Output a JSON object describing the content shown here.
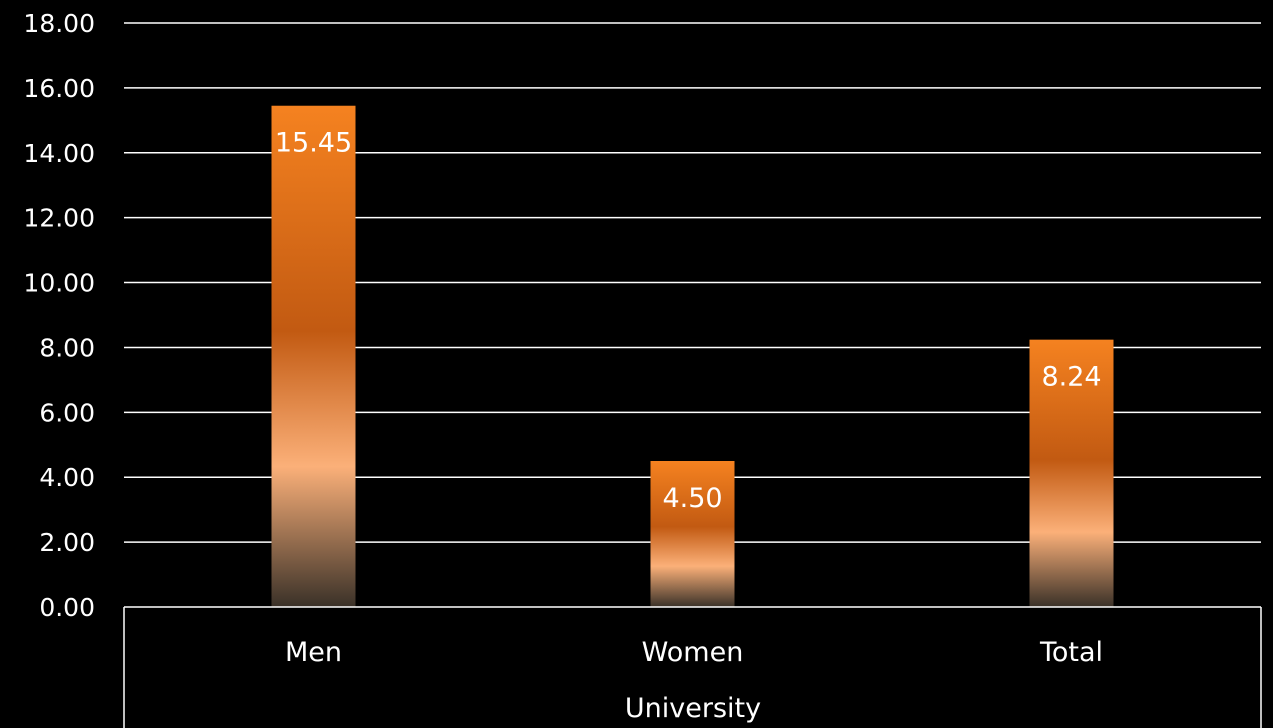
{
  "chart_data": {
    "type": "bar",
    "categories": [
      "Men",
      "Women",
      "Total"
    ],
    "group_label": "University",
    "series": [
      {
        "values": [
          15.45,
          4.5,
          8.24
        ],
        "value_labels": [
          "15.45",
          "4.50",
          "8.24"
        ]
      }
    ],
    "ylim": [
      0,
      18
    ],
    "yticks": [
      "0.00",
      "2.00",
      "4.00",
      "6.00",
      "8.00",
      "10.00",
      "12.00",
      "14.00",
      "16.00",
      "18.00"
    ],
    "grid": true,
    "colors": {
      "background": "#000000",
      "gridline": "#ffffff",
      "text": "#ffffff",
      "bar_top": "#f58220",
      "bar_mid": "#c25a12",
      "bar_light": "#fbb079",
      "bar_bottom": "#3a3128"
    }
  }
}
